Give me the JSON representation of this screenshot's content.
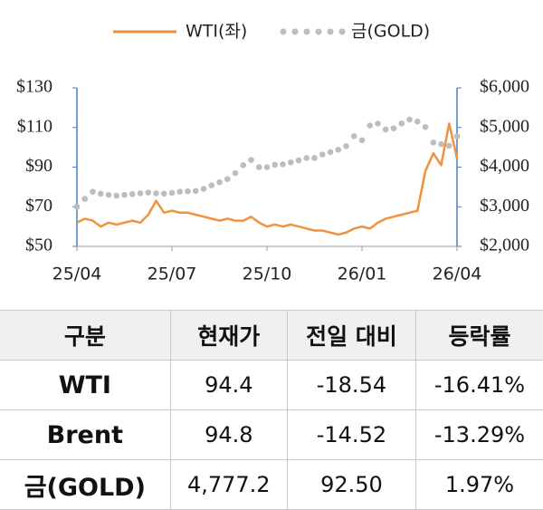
{
  "chart_data": {
    "type": "line",
    "legend": "top",
    "x": [
      0,
      0.25,
      0.5,
      0.75,
      1,
      1.25,
      1.5,
      1.75,
      2,
      2.25,
      2.5,
      2.75,
      3,
      3.25,
      3.5,
      3.75,
      4,
      4.25,
      4.5,
      4.75,
      5,
      5.25,
      5.5,
      5.75,
      6,
      6.25,
      6.5,
      6.75,
      7,
      7.25,
      7.5,
      7.75,
      8,
      8.25,
      8.5,
      8.75,
      9,
      9.25,
      9.5,
      9.75,
      10,
      10.25,
      10.5,
      10.75,
      11,
      11.25,
      11.5,
      11.75,
      12
    ],
    "xlim": [
      0,
      12
    ],
    "xticks": [
      {
        "value": 0,
        "label": "25/04"
      },
      {
        "value": 3,
        "label": "25/07"
      },
      {
        "value": 6,
        "label": "25/10"
      },
      {
        "value": 9,
        "label": "26/01"
      },
      {
        "value": 12,
        "label": "26/04"
      }
    ],
    "ylim": [
      50,
      130
    ],
    "yticks": [
      {
        "value": 50,
        "label": "$50"
      },
      {
        "value": 70,
        "label": "$70"
      },
      {
        "value": 90,
        "label": "$90"
      },
      {
        "value": 110,
        "label": "$110"
      },
      {
        "value": 130,
        "label": "$130"
      }
    ],
    "y2lim": [
      2000,
      6000
    ],
    "y2ticks": [
      {
        "value": 2000,
        "label": "$2,000"
      },
      {
        "value": 3000,
        "label": "$3,000"
      },
      {
        "value": 4000,
        "label": "$4,000"
      },
      {
        "value": 5000,
        "label": "$5,000"
      },
      {
        "value": 6000,
        "label": "$6,000"
      }
    ],
    "series": [
      {
        "name": "WTI(좌)",
        "color": "#f0923e",
        "style": "solid",
        "values": [
          62,
          64,
          63,
          60,
          62,
          61,
          62,
          63,
          62,
          66,
          73,
          67,
          68,
          67,
          67,
          66,
          65,
          64,
          63,
          64,
          63,
          63,
          65,
          62,
          60,
          61,
          60,
          61,
          60,
          59,
          58,
          58,
          57,
          56,
          57,
          59,
          60,
          59,
          62,
          64,
          65,
          66,
          67,
          68,
          88,
          97,
          91,
          112,
          94.4
        ]
      },
      {
        "name": "금(GOLD)",
        "color": "#bdbdbd",
        "style": "dotted",
        "axis": "y2",
        "values": [
          3000,
          3200,
          3380,
          3330,
          3300,
          3280,
          3300,
          3320,
          3340,
          3360,
          3340,
          3330,
          3350,
          3380,
          3390,
          3400,
          3450,
          3540,
          3620,
          3700,
          3850,
          4050,
          4180,
          4000,
          4000,
          4060,
          4070,
          4120,
          4170,
          4230,
          4230,
          4320,
          4380,
          4440,
          4530,
          4780,
          4680,
          5050,
          5100,
          4950,
          4980,
          5100,
          5200,
          5150,
          5010,
          4620,
          4580,
          4540,
          4777.2
        ]
      }
    ]
  },
  "table": {
    "header": [
      "구분",
      "현재가",
      "전일 대비",
      "등락률"
    ],
    "rows": [
      [
        "WTI",
        "94.4",
        "-18.54",
        "-16.41%"
      ],
      [
        "Brent",
        "94.8",
        "-14.52",
        "-13.29%"
      ],
      [
        "금(GOLD)",
        "4,777.2",
        "92.50",
        "1.97%"
      ]
    ]
  }
}
